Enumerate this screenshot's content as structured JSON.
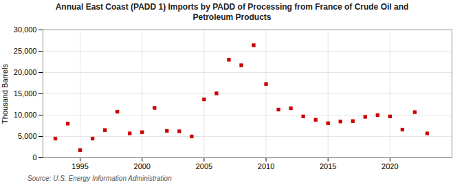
{
  "chart_data": {
    "type": "scatter",
    "title": "Annual East Coast (PADD 1) Imports by PADD of Processing from France of Crude Oil and\nPetroleum Products",
    "ylabel": "Thousand Barrels",
    "source": "Source: U.S. Energy Information Administration",
    "x": [
      1993,
      1994,
      1995,
      1996,
      1997,
      1998,
      1999,
      2000,
      2001,
      2002,
      2003,
      2004,
      2005,
      2006,
      2007,
      2008,
      2009,
      2010,
      2011,
      2012,
      2013,
      2014,
      2015,
      2016,
      2017,
      2018,
      2019,
      2020,
      2021,
      2022,
      2023
    ],
    "values": [
      4500,
      8000,
      1800,
      4500,
      6500,
      10800,
      5700,
      6000,
      11700,
      6300,
      6200,
      5000,
      13700,
      15100,
      23000,
      21700,
      26400,
      17300,
      11300,
      11600,
      9700,
      8900,
      8100,
      8500,
      8600,
      9600,
      10000,
      9700,
      6600,
      10700,
      5700
    ],
    "color": "#cc0000",
    "marker": "square",
    "xlim": [
      1992,
      2025
    ],
    "ylim": [
      0,
      30000
    ],
    "xticks": [
      1995,
      2000,
      2005,
      2010,
      2015,
      2020
    ],
    "yticks": [
      0,
      {
        "value": 5000,
        "label": "5,000"
      },
      {
        "value": 10000,
        "label": "10,000"
      },
      {
        "value": 15000,
        "label": "15,000"
      },
      {
        "value": 20000,
        "label": "20,000"
      },
      {
        "value": 25000,
        "label": "25,000"
      },
      {
        "value": 30000,
        "label": "30,000"
      }
    ],
    "grid": true
  }
}
